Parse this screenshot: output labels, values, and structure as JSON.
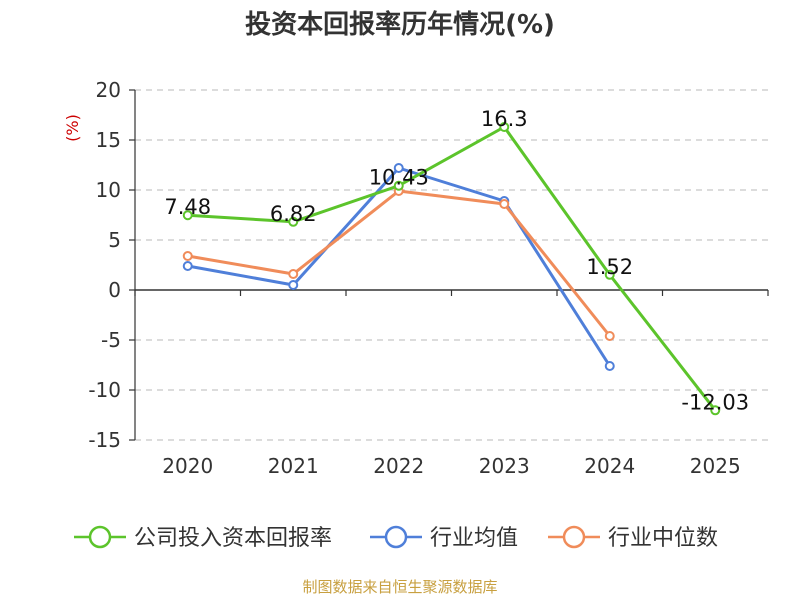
{
  "chart_data": {
    "type": "line",
    "title": "投资本回报率历年情况(%)",
    "ylabel": "(%)",
    "categories": [
      "2020",
      "2021",
      "2022",
      "2023",
      "2024",
      "2025"
    ],
    "yticks": [
      "20",
      "15",
      "10",
      "5",
      "0",
      "-5",
      "-10",
      "-15"
    ],
    "ylim": [
      -15,
      20
    ],
    "grid": true,
    "legend_position": "bottom",
    "series": [
      {
        "name": "公司投入资本回报率",
        "color": "#5cc42b",
        "values": [
          7.48,
          6.82,
          10.43,
          16.3,
          1.52,
          -12.03
        ],
        "labels": [
          "7.48",
          "6.82",
          "10.43",
          "16.3",
          "1.52",
          "-12.03"
        ]
      },
      {
        "name": "行业均值",
        "color": "#4f7fd9",
        "values": [
          2.4,
          0.5,
          12.2,
          8.9,
          -7.6,
          null
        ]
      },
      {
        "name": "行业中位数",
        "color": "#f08c5a",
        "values": [
          3.4,
          1.6,
          9.9,
          8.6,
          -4.6,
          null
        ]
      }
    ]
  },
  "source": "制图数据来自恒生聚源数据库"
}
